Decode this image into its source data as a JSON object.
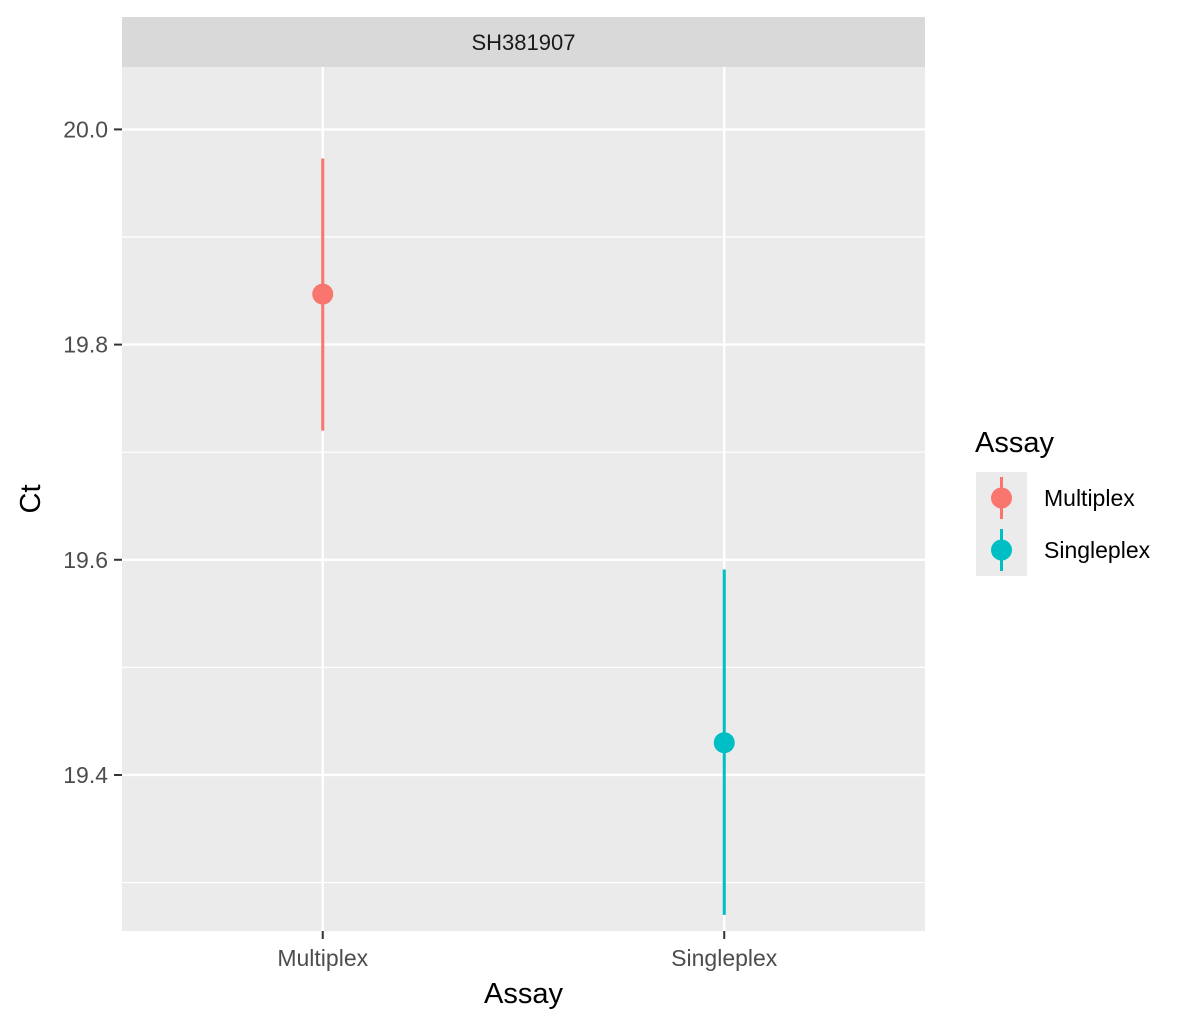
{
  "chart_data": {
    "type": "pointrange",
    "facet_title": "SH381907",
    "xlabel": "Assay",
    "ylabel": "Ct",
    "categories": [
      "Multiplex",
      "Singleplex"
    ],
    "ylim": [
      19.255,
      20.058
    ],
    "y_major_ticks": [
      19.4,
      19.6,
      19.8,
      20.0
    ],
    "y_tick_labels": [
      "19.4",
      "19.6",
      "19.8",
      "20.0"
    ],
    "y_minor_ticks": [
      19.3,
      19.5,
      19.7,
      19.9
    ],
    "series": [
      {
        "name": "Multiplex",
        "category": "Multiplex",
        "y": 19.847,
        "ymin": 19.72,
        "ymax": 19.973,
        "color": "#F8766D"
      },
      {
        "name": "Singleplex",
        "category": "Singleplex",
        "y": 19.43,
        "ymin": 19.27,
        "ymax": 19.591,
        "color": "#00BFC4"
      }
    ],
    "legend": {
      "title": "Assay",
      "position": "right",
      "entries": [
        "Multiplex",
        "Singleplex"
      ]
    },
    "grid": true,
    "panel_background": "#EBEBEB",
    "strip_background": "#D9D9D9"
  }
}
